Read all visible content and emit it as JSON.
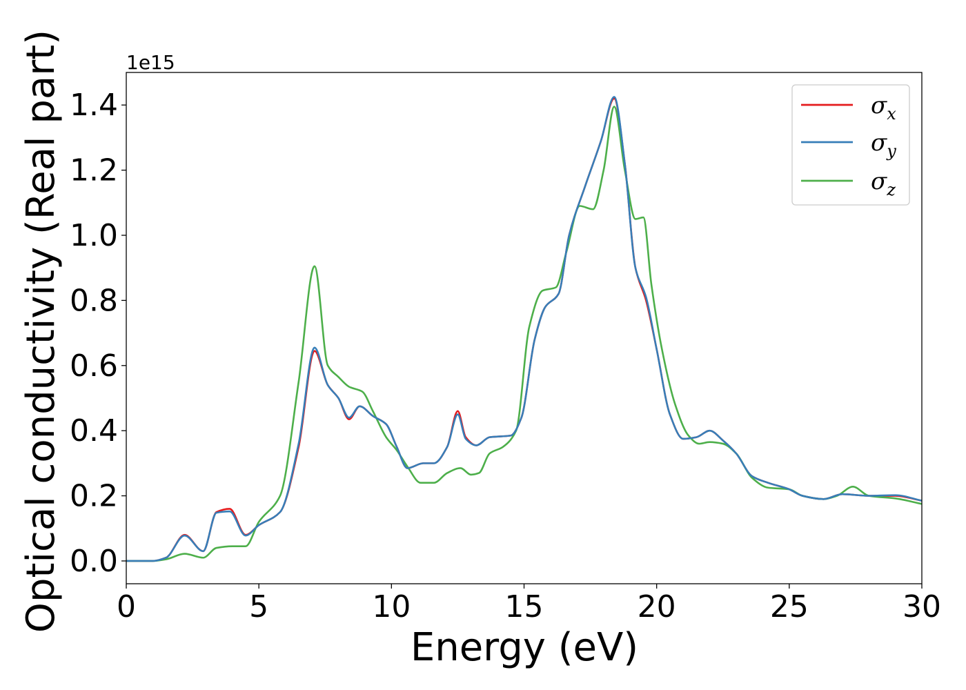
{
  "chart_data": {
    "type": "line",
    "title": "",
    "xlabel": "Energy (eV)",
    "ylabel": "Optical conductivity (Real part)",
    "y_offset_text": "1e15",
    "y_scale": 1000000000000000.0,
    "xlim": [
      0,
      30
    ],
    "ylim": [
      -0.07,
      1.5
    ],
    "x_ticks": [
      0,
      5,
      10,
      15,
      20,
      25,
      30
    ],
    "x_tick_labels": [
      "0",
      "5",
      "10",
      "15",
      "20",
      "25",
      "30"
    ],
    "y_ticks": [
      0.0,
      0.2,
      0.4,
      0.6,
      0.8,
      1.0,
      1.2,
      1.4
    ],
    "y_tick_labels": [
      "0.0",
      "0.2",
      "0.4",
      "0.6",
      "0.8",
      "1.0",
      "1.2",
      "1.4"
    ],
    "grid": false,
    "legend_position": "top-right",
    "series": [
      {
        "name": "σx",
        "legend_base": "σ",
        "legend_sub": "x",
        "color": "#e41a1c",
        "points": [
          [
            0,
            0.0
          ],
          [
            1,
            0.0
          ],
          [
            1.5,
            0.01
          ],
          [
            2.2,
            0.08
          ],
          [
            2.9,
            0.03
          ],
          [
            3.4,
            0.15
          ],
          [
            3.9,
            0.16
          ],
          [
            4.5,
            0.08
          ],
          [
            5,
            0.11
          ],
          [
            5.8,
            0.15
          ],
          [
            6.5,
            0.35
          ],
          [
            7.1,
            0.645
          ],
          [
            7.6,
            0.54
          ],
          [
            8,
            0.5
          ],
          [
            8.4,
            0.435
          ],
          [
            8.8,
            0.475
          ],
          [
            9.3,
            0.445
          ],
          [
            9.8,
            0.42
          ],
          [
            10.2,
            0.35
          ],
          [
            10.6,
            0.285
          ],
          [
            11.2,
            0.3
          ],
          [
            11.6,
            0.3
          ],
          [
            12.1,
            0.35
          ],
          [
            12.5,
            0.46
          ],
          [
            12.8,
            0.38
          ],
          [
            13.2,
            0.355
          ],
          [
            13.7,
            0.38
          ],
          [
            14.5,
            0.385
          ],
          [
            14.9,
            0.44
          ],
          [
            15.4,
            0.68
          ],
          [
            15.8,
            0.78
          ],
          [
            16.3,
            0.82
          ],
          [
            16.7,
            1.0
          ],
          [
            17.3,
            1.15
          ],
          [
            17.9,
            1.29
          ],
          [
            18.4,
            1.42
          ],
          [
            18.8,
            1.22
          ],
          [
            19.2,
            0.9
          ],
          [
            19.6,
            0.8
          ],
          [
            20,
            0.65
          ],
          [
            20.5,
            0.45
          ],
          [
            21,
            0.375
          ],
          [
            21.5,
            0.38
          ],
          [
            22,
            0.4
          ],
          [
            22.5,
            0.37
          ],
          [
            23,
            0.33
          ],
          [
            23.6,
            0.26
          ],
          [
            24.2,
            0.24
          ],
          [
            25,
            0.22
          ],
          [
            25.5,
            0.2
          ],
          [
            26.3,
            0.19
          ],
          [
            27,
            0.205
          ],
          [
            28,
            0.2
          ],
          [
            29,
            0.2
          ],
          [
            30,
            0.185
          ]
        ]
      },
      {
        "name": "σy",
        "legend_base": "σ",
        "legend_sub": "y",
        "color": "#377eb8",
        "points": [
          [
            0,
            0.0
          ],
          [
            1,
            0.0
          ],
          [
            1.5,
            0.01
          ],
          [
            2.2,
            0.078
          ],
          [
            2.9,
            0.03
          ],
          [
            3.4,
            0.148
          ],
          [
            3.9,
            0.152
          ],
          [
            4.5,
            0.078
          ],
          [
            5,
            0.11
          ],
          [
            5.8,
            0.15
          ],
          [
            6.5,
            0.36
          ],
          [
            7.1,
            0.655
          ],
          [
            7.6,
            0.54
          ],
          [
            8,
            0.5
          ],
          [
            8.4,
            0.44
          ],
          [
            8.8,
            0.475
          ],
          [
            9.3,
            0.445
          ],
          [
            9.8,
            0.42
          ],
          [
            10.2,
            0.35
          ],
          [
            10.6,
            0.285
          ],
          [
            11.2,
            0.3
          ],
          [
            11.6,
            0.3
          ],
          [
            12.1,
            0.35
          ],
          [
            12.5,
            0.45
          ],
          [
            12.8,
            0.375
          ],
          [
            13.2,
            0.355
          ],
          [
            13.7,
            0.38
          ],
          [
            14.5,
            0.385
          ],
          [
            14.9,
            0.44
          ],
          [
            15.4,
            0.68
          ],
          [
            15.8,
            0.78
          ],
          [
            16.3,
            0.82
          ],
          [
            16.7,
            1.0
          ],
          [
            17.3,
            1.15
          ],
          [
            17.9,
            1.29
          ],
          [
            18.4,
            1.425
          ],
          [
            18.8,
            1.22
          ],
          [
            19.2,
            0.9
          ],
          [
            19.6,
            0.81
          ],
          [
            20,
            0.65
          ],
          [
            20.5,
            0.45
          ],
          [
            21,
            0.375
          ],
          [
            21.5,
            0.38
          ],
          [
            22,
            0.4
          ],
          [
            22.5,
            0.37
          ],
          [
            23,
            0.33
          ],
          [
            23.6,
            0.26
          ],
          [
            24.2,
            0.24
          ],
          [
            25,
            0.22
          ],
          [
            25.5,
            0.2
          ],
          [
            26.3,
            0.19
          ],
          [
            27,
            0.205
          ],
          [
            28,
            0.2
          ],
          [
            29,
            0.202
          ],
          [
            30,
            0.185
          ]
        ]
      },
      {
        "name": "σz",
        "legend_base": "σ",
        "legend_sub": "z",
        "color": "#4daf4a",
        "points": [
          [
            0,
            0.0
          ],
          [
            1,
            0.0
          ],
          [
            1.5,
            0.005
          ],
          [
            2.2,
            0.022
          ],
          [
            2.9,
            0.01
          ],
          [
            3.4,
            0.04
          ],
          [
            4,
            0.045
          ],
          [
            4.5,
            0.045
          ],
          [
            5,
            0.12
          ],
          [
            5.8,
            0.2
          ],
          [
            6.5,
            0.55
          ],
          [
            7.1,
            0.905
          ],
          [
            7.6,
            0.6
          ],
          [
            8,
            0.565
          ],
          [
            8.4,
            0.535
          ],
          [
            8.9,
            0.52
          ],
          [
            9.3,
            0.46
          ],
          [
            9.8,
            0.38
          ],
          [
            10.2,
            0.34
          ],
          [
            10.6,
            0.29
          ],
          [
            11.1,
            0.24
          ],
          [
            11.6,
            0.24
          ],
          [
            12.1,
            0.27
          ],
          [
            12.6,
            0.285
          ],
          [
            13,
            0.265
          ],
          [
            13.3,
            0.27
          ],
          [
            13.7,
            0.33
          ],
          [
            14.2,
            0.35
          ],
          [
            14.7,
            0.4
          ],
          [
            15.2,
            0.72
          ],
          [
            15.7,
            0.83
          ],
          [
            16.2,
            0.84
          ],
          [
            16.6,
            0.95
          ],
          [
            17.1,
            1.09
          ],
          [
            17.6,
            1.08
          ],
          [
            18,
            1.2
          ],
          [
            18.4,
            1.395
          ],
          [
            18.8,
            1.2
          ],
          [
            19.2,
            1.05
          ],
          [
            19.5,
            1.055
          ],
          [
            19.8,
            0.85
          ],
          [
            20.2,
            0.65
          ],
          [
            20.7,
            0.48
          ],
          [
            21.2,
            0.385
          ],
          [
            21.6,
            0.36
          ],
          [
            22,
            0.365
          ],
          [
            22.5,
            0.36
          ],
          [
            23,
            0.33
          ],
          [
            23.6,
            0.255
          ],
          [
            24.2,
            0.225
          ],
          [
            25,
            0.22
          ],
          [
            25.5,
            0.2
          ],
          [
            26.3,
            0.19
          ],
          [
            26.8,
            0.2
          ],
          [
            27.4,
            0.228
          ],
          [
            28,
            0.2
          ],
          [
            29,
            0.192
          ],
          [
            30,
            0.175
          ]
        ]
      }
    ]
  }
}
